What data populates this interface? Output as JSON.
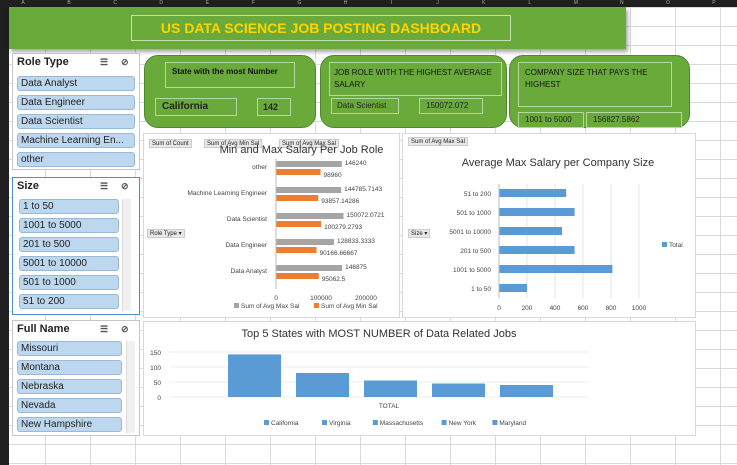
{
  "header_cols": [
    "A",
    "B",
    "C",
    "D",
    "E",
    "F",
    "G",
    "H",
    "I",
    "J",
    "K",
    "L",
    "M",
    "N",
    "O",
    "P"
  ],
  "dashboard_title": "US DATA SCIENCE JOB POSTING DASHBOARD",
  "slicers": {
    "role": {
      "title": "Role Type",
      "items": [
        "Data Analyst",
        "Data Engineer",
        "Data Scientist",
        "Machine Learning En...",
        "other"
      ]
    },
    "size": {
      "title": "Size",
      "items": [
        "1 to 50",
        "1001 to 5000",
        "201 to 500",
        "5001 to 10000",
        "501 to 1000",
        "51 to 200"
      ]
    },
    "fullname": {
      "title": "Full Name",
      "items": [
        "Missouri",
        "Montana",
        "Nebraska",
        "Nevada",
        "New Hampshire"
      ]
    }
  },
  "kpis": [
    {
      "title": "State with the most Number",
      "label": "California",
      "value": "142"
    },
    {
      "title": "JOB ROLE WITH THE HIGHEST AVERAGE SALARY",
      "label": "Data Scientist",
      "value": "150072.072"
    },
    {
      "title": "COMPANY SIZE THAT PAYS THE HIGHEST",
      "label": "1001 to 5000",
      "value": "156827.5862"
    }
  ],
  "pivot_buttons": {
    "sum_count": "Sum of Count",
    "sum_min": "Sum of Avg Min Sal",
    "sum_max": "Sum of Avg Max Sal",
    "role_type": "Role Type ▾",
    "size": "Size ▾",
    "sum_max2": "Sum of Avg Max Sal"
  },
  "chart_data": [
    {
      "type": "bar",
      "title": "Min and Max Salary Per Job Role",
      "categories": [
        "other",
        "Machine Learning Engineer",
        "Data Scientist",
        "Data Engineer",
        "Data Analyst"
      ],
      "series": [
        {
          "name": "Sum of Avg Max Sal",
          "values": [
            146240,
            144785.7143,
            150072.0721,
            128833.3333,
            146875
          ],
          "color": "#a5a5a5",
          "labels": [
            "146240",
            "144785.7143",
            "150072.0721",
            "128833.3333",
            "146875"
          ]
        },
        {
          "name": "Sum of Avg Min Sal",
          "values": [
            98960,
            93857.14286,
            100279.2793,
            90166.66667,
            95062.5
          ],
          "color": "#ed7d31",
          "labels": [
            "98960",
            "93857.14286",
            "100279.2793",
            "90166.66667",
            "95062.5"
          ]
        }
      ],
      "xticks": [
        "0",
        "100000",
        "200000"
      ],
      "xlim": [
        0,
        200000
      ]
    },
    {
      "type": "bar",
      "title": "Average Max Salary per Company Size",
      "categories": [
        "51 to 200",
        "501 to 1000",
        "5001 to 10000",
        "201 to 500",
        "1001 to 5000",
        "1 to 50"
      ],
      "series": [
        {
          "name": "Total",
          "values": [
            480,
            540,
            450,
            540,
            810,
            200
          ],
          "color": "#5b9bd5"
        }
      ],
      "xticks": [
        "0",
        "200",
        "400",
        "600",
        "800",
        "1000"
      ],
      "xlim": [
        0,
        1000
      ]
    },
    {
      "type": "bar",
      "title": "Top 5 States with MOST NUMBER of Data Related Jobs",
      "categories": [
        "TOTAL"
      ],
      "xlabel": "TOTAL",
      "series": [
        {
          "name": "California",
          "values": [
            142
          ]
        },
        {
          "name": "Virginia",
          "values": [
            80
          ]
        },
        {
          "name": "Massachusetts",
          "values": [
            55
          ]
        },
        {
          "name": "New York",
          "values": [
            45
          ]
        },
        {
          "name": "Maryland",
          "values": [
            40
          ]
        }
      ],
      "yticks": [
        "150",
        "100",
        "50",
        "0"
      ],
      "ylim": [
        0,
        150
      ],
      "color": "#5b9bd5"
    }
  ]
}
